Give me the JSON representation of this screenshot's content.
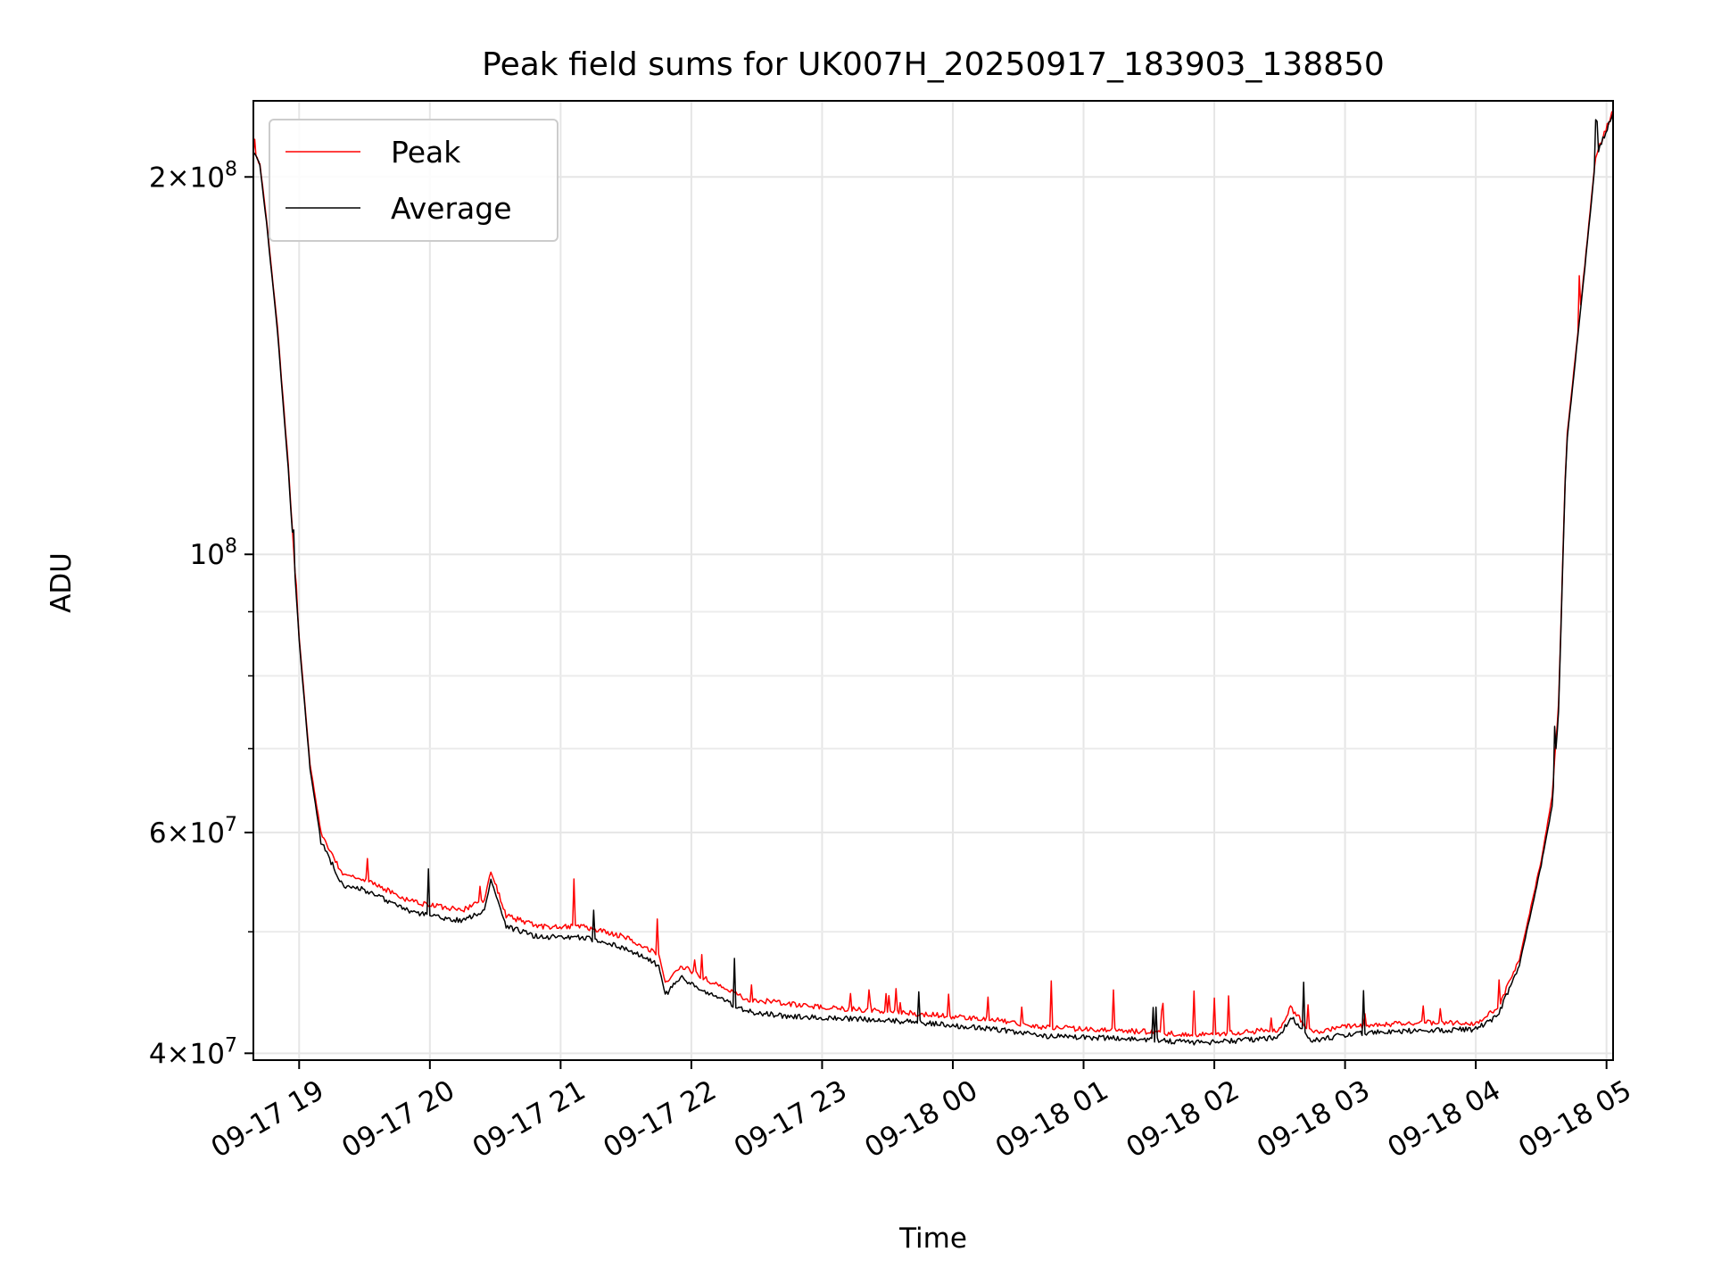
{
  "chart_data": {
    "type": "line",
    "title": "Peak field sums for UK007H_20250917_183903_138850",
    "xlabel": "Time",
    "ylabel": "ADU",
    "yscale": "log",
    "ylim": [
      39500000,
      230000000
    ],
    "xlim": [
      "2025-09-17T18:39:00",
      "2025-09-18T05:03:00"
    ],
    "grid": true,
    "legend_position": "upper left",
    "x_ticks": [
      {
        "value": "2025-09-17T19:00:00",
        "label": "09-17 19"
      },
      {
        "value": "2025-09-17T20:00:00",
        "label": "09-17 20"
      },
      {
        "value": "2025-09-17T21:00:00",
        "label": "09-17 21"
      },
      {
        "value": "2025-09-17T22:00:00",
        "label": "09-17 22"
      },
      {
        "value": "2025-09-17T23:00:00",
        "label": "09-17 23"
      },
      {
        "value": "2025-09-18T00:00:00",
        "label": "09-18 00"
      },
      {
        "value": "2025-09-18T01:00:00",
        "label": "09-18 01"
      },
      {
        "value": "2025-09-18T02:00:00",
        "label": "09-18 02"
      },
      {
        "value": "2025-09-18T03:00:00",
        "label": "09-18 03"
      },
      {
        "value": "2025-09-18T04:00:00",
        "label": "09-18 04"
      },
      {
        "value": "2025-09-18T05:00:00",
        "label": "09-18 05"
      }
    ],
    "y_ticks": [
      {
        "value": 40000000,
        "base": "4×10",
        "exp": "7"
      },
      {
        "value": 60000000,
        "base": "6×10",
        "exp": "7"
      },
      {
        "value": 100000000,
        "base": "10",
        "exp": "8"
      },
      {
        "value": 200000000,
        "base": "2×10",
        "exp": "8"
      }
    ],
    "y_minor_ticks": [
      50000000,
      70000000,
      80000000,
      90000000
    ],
    "series": [
      {
        "name": "Peak",
        "color": "#ff0000",
        "x": [
          "2025-09-17T18:39:00",
          "2025-09-17T18:42:00",
          "2025-09-17T18:45:00",
          "2025-09-17T18:50:00",
          "2025-09-17T18:55:00",
          "2025-09-17T19:00:00",
          "2025-09-17T19:05:00",
          "2025-09-17T19:10:00",
          "2025-09-17T19:20:00",
          "2025-09-17T19:30:00",
          "2025-09-17T19:40:00",
          "2025-09-17T19:50:00",
          "2025-09-17T20:00:00",
          "2025-09-17T20:15:00",
          "2025-09-17T20:25:00",
          "2025-09-17T20:28:00",
          "2025-09-17T20:35:00",
          "2025-09-17T20:50:00",
          "2025-09-17T21:10:00",
          "2025-09-17T21:30:00",
          "2025-09-17T21:45:00",
          "2025-09-17T21:48:00",
          "2025-09-17T21:55:00",
          "2025-09-17T22:10:00",
          "2025-09-17T22:25:00",
          "2025-09-17T22:45:00",
          "2025-09-17T23:00:00",
          "2025-09-17T23:30:00",
          "2025-09-18T00:00:00",
          "2025-09-18T00:20:00",
          "2025-09-18T00:40:00",
          "2025-09-18T01:00:00",
          "2025-09-18T01:30:00",
          "2025-09-18T01:50:00",
          "2025-09-18T02:00:00",
          "2025-09-18T02:30:00",
          "2025-09-18T02:35:00",
          "2025-09-18T02:45:00",
          "2025-09-18T03:00:00",
          "2025-09-18T03:30:00",
          "2025-09-18T04:00:00",
          "2025-09-18T04:10:00",
          "2025-09-18T04:20:00",
          "2025-09-18T04:30:00",
          "2025-09-18T04:35:00",
          "2025-09-18T04:38:00",
          "2025-09-18T04:41:00",
          "2025-09-18T04:42:00",
          "2025-09-18T04:45:00",
          "2025-09-18T04:50:00",
          "2025-09-18T04:55:00",
          "2025-09-18T05:03:00"
        ],
        "y": [
          209000000,
          205000000,
          185000000,
          152000000,
          118000000,
          86000000,
          68000000,
          60000000,
          55500000,
          55000000,
          54000000,
          53000000,
          52500000,
          52000000,
          53000000,
          56000000,
          51500000,
          50500000,
          50500000,
          49500000,
          48000000,
          45500000,
          47000000,
          45500000,
          44200000,
          43800000,
          43500000,
          43200000,
          42800000,
          42500000,
          42000000,
          41800000,
          41600000,
          41400000,
          41400000,
          41800000,
          43500000,
          41500000,
          42000000,
          42300000,
          42300000,
          43500000,
          47500000,
          57000000,
          64000000,
          76000000,
          115000000,
          125000000,
          140000000,
          170000000,
          208000000,
          226000000
        ]
      },
      {
        "name": "Average",
        "color": "#000000",
        "x": [
          "2025-09-17T18:39:00",
          "2025-09-17T18:42:00",
          "2025-09-17T18:45:00",
          "2025-09-17T18:50:00",
          "2025-09-17T18:55:00",
          "2025-09-17T19:00:00",
          "2025-09-17T19:05:00",
          "2025-09-17T19:10:00",
          "2025-09-17T19:20:00",
          "2025-09-17T19:30:00",
          "2025-09-17T19:40:00",
          "2025-09-17T19:50:00",
          "2025-09-17T20:00:00",
          "2025-09-17T20:15:00",
          "2025-09-17T20:25:00",
          "2025-09-17T20:28:00",
          "2025-09-17T20:35:00",
          "2025-09-17T20:50:00",
          "2025-09-17T21:10:00",
          "2025-09-17T21:30:00",
          "2025-09-17T21:45:00",
          "2025-09-17T21:48:00",
          "2025-09-17T21:55:00",
          "2025-09-17T22:10:00",
          "2025-09-17T22:25:00",
          "2025-09-17T22:45:00",
          "2025-09-17T23:00:00",
          "2025-09-17T23:30:00",
          "2025-09-18T00:00:00",
          "2025-09-18T00:20:00",
          "2025-09-18T00:40:00",
          "2025-09-18T01:00:00",
          "2025-09-18T01:30:00",
          "2025-09-18T01:50:00",
          "2025-09-18T02:00:00",
          "2025-09-18T02:30:00",
          "2025-09-18T02:35:00",
          "2025-09-18T02:45:00",
          "2025-09-18T03:00:00",
          "2025-09-18T03:30:00",
          "2025-09-18T04:00:00",
          "2025-09-18T04:10:00",
          "2025-09-18T04:20:00",
          "2025-09-18T04:30:00",
          "2025-09-18T04:35:00",
          "2025-09-18T04:38:00",
          "2025-09-18T04:41:00",
          "2025-09-18T04:42:00",
          "2025-09-18T04:45:00",
          "2025-09-18T04:50:00",
          "2025-09-18T04:55:00",
          "2025-09-18T05:03:00"
        ],
        "y": [
          209000000,
          204000000,
          184000000,
          151000000,
          117000000,
          85500000,
          67500000,
          59000000,
          54500000,
          54000000,
          53000000,
          52000000,
          51500000,
          51000000,
          52000000,
          55000000,
          50500000,
          49500000,
          49500000,
          48500000,
          47000000,
          44500000,
          46000000,
          44500000,
          43200000,
          42800000,
          42700000,
          42500000,
          42100000,
          41800000,
          41300000,
          41200000,
          41000000,
          40800000,
          40800000,
          41200000,
          42800000,
          40900000,
          41400000,
          41700000,
          41800000,
          42800000,
          47000000,
          56500000,
          63000000,
          75000000,
          114000000,
          124000000,
          139000000,
          169000000,
          207000000,
          225000000
        ]
      }
    ]
  }
}
